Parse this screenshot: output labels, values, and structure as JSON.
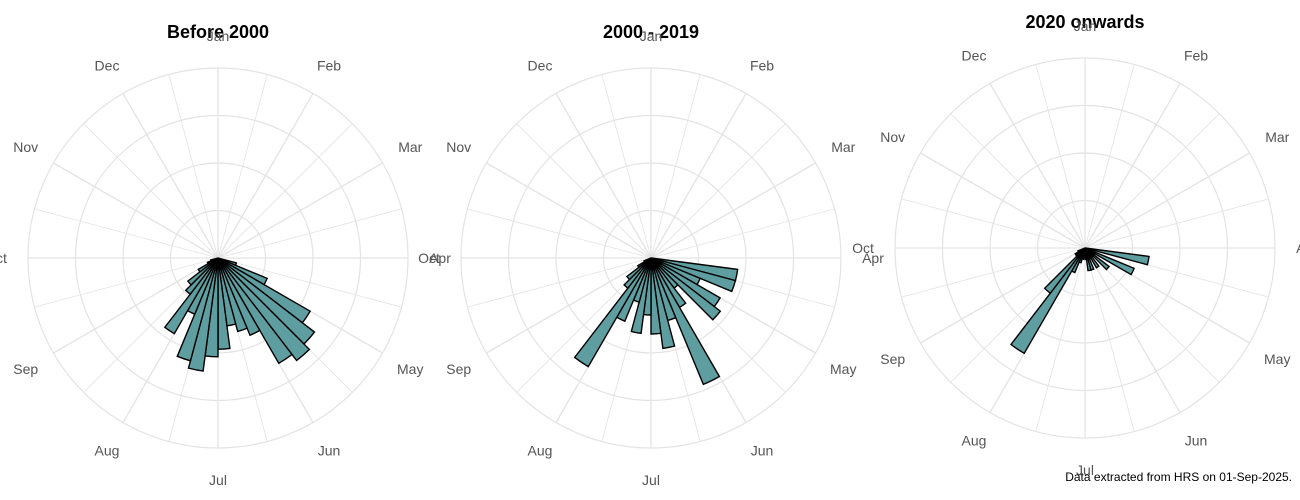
{
  "caption": "Data extracted from HRS on 01-Sep-2025.",
  "colors": {
    "bar_fill": "#5f9ea0",
    "bar_stroke": "#000000",
    "grid": "#e3e3e3",
    "month_label": "#555555",
    "title": "#000000"
  },
  "chart_data": [
    {
      "type": "radial-bar",
      "title": "Before 2000",
      "angular_axis": {
        "labels": [
          "Jan",
          "Feb",
          "Mar",
          "Apr",
          "May",
          "Jun",
          "Jul",
          "Aug",
          "Sep",
          "Oct",
          "Nov",
          "Dec"
        ],
        "bins_per_month": 4,
        "direction": "clockwise",
        "start": "Jan at top"
      },
      "radial_range": [
        0,
        5
      ],
      "grid": true,
      "values": [
        0,
        0,
        0,
        0,
        0,
        0,
        0,
        0,
        0,
        0,
        0,
        0,
        0,
        0,
        0.5,
        1.4,
        2.8,
        3.2,
        3.4,
        3.2,
        2.2,
        2.0,
        1.8,
        2.4,
        2.6,
        3.0,
        2.8,
        1.6,
        2.3,
        1.2,
        1.0,
        0.6,
        0.3,
        0.2,
        0,
        0,
        0,
        0,
        0,
        0,
        0,
        0,
        0,
        0,
        0,
        0,
        0,
        0
      ]
    },
    {
      "type": "radial-bar",
      "title": "2000 - 2019",
      "angular_axis": {
        "labels": [
          "Jan",
          "Feb",
          "Mar",
          "Apr",
          "May",
          "Jun",
          "Jul",
          "Aug",
          "Sep",
          "Oct",
          "Nov",
          "Dec"
        ],
        "bins_per_month": 4,
        "direction": "clockwise",
        "start": "Jan at top"
      },
      "radial_range": [
        0,
        5
      ],
      "grid": true,
      "values": [
        0,
        0,
        0,
        0,
        0,
        0,
        0,
        0,
        0,
        0,
        0,
        0,
        0,
        2.3,
        2.3,
        1.4,
        2.1,
        2.3,
        1.0,
        1.5,
        3.6,
        1.7,
        2.4,
        2.0,
        1.5,
        2.0,
        1.2,
        1.8,
        3.3,
        1.0,
        0.8,
        0.4,
        0.2,
        0,
        0,
        0,
        0,
        0,
        0,
        0,
        0,
        0,
        0,
        0,
        0,
        0,
        0,
        0
      ]
    },
    {
      "type": "radial-bar",
      "title": "2020 onwards",
      "angular_axis": {
        "labels": [
          "Jan",
          "Feb",
          "Mar",
          "Apr",
          "May",
          "Jun",
          "Jul",
          "Aug",
          "Sep",
          "Oct",
          "Nov",
          "Dec"
        ],
        "bins_per_month": 4,
        "direction": "clockwise",
        "start": "Jan at top"
      },
      "radial_range": [
        0,
        5
      ],
      "grid": true,
      "values": [
        0,
        0,
        0,
        0,
        0,
        0,
        0,
        0,
        0,
        0,
        0,
        0,
        0,
        1.7,
        0.2,
        1.4,
        0.3,
        0.8,
        0.3,
        0.6,
        0.3,
        0.6,
        0.6,
        0.3,
        0.2,
        0.3,
        0.4,
        0.7,
        3.2,
        1.5,
        0.3,
        0.3,
        0.2,
        0,
        0,
        0,
        0,
        0,
        0,
        0,
        0,
        0,
        0,
        0,
        0,
        0,
        0,
        0
      ]
    }
  ]
}
